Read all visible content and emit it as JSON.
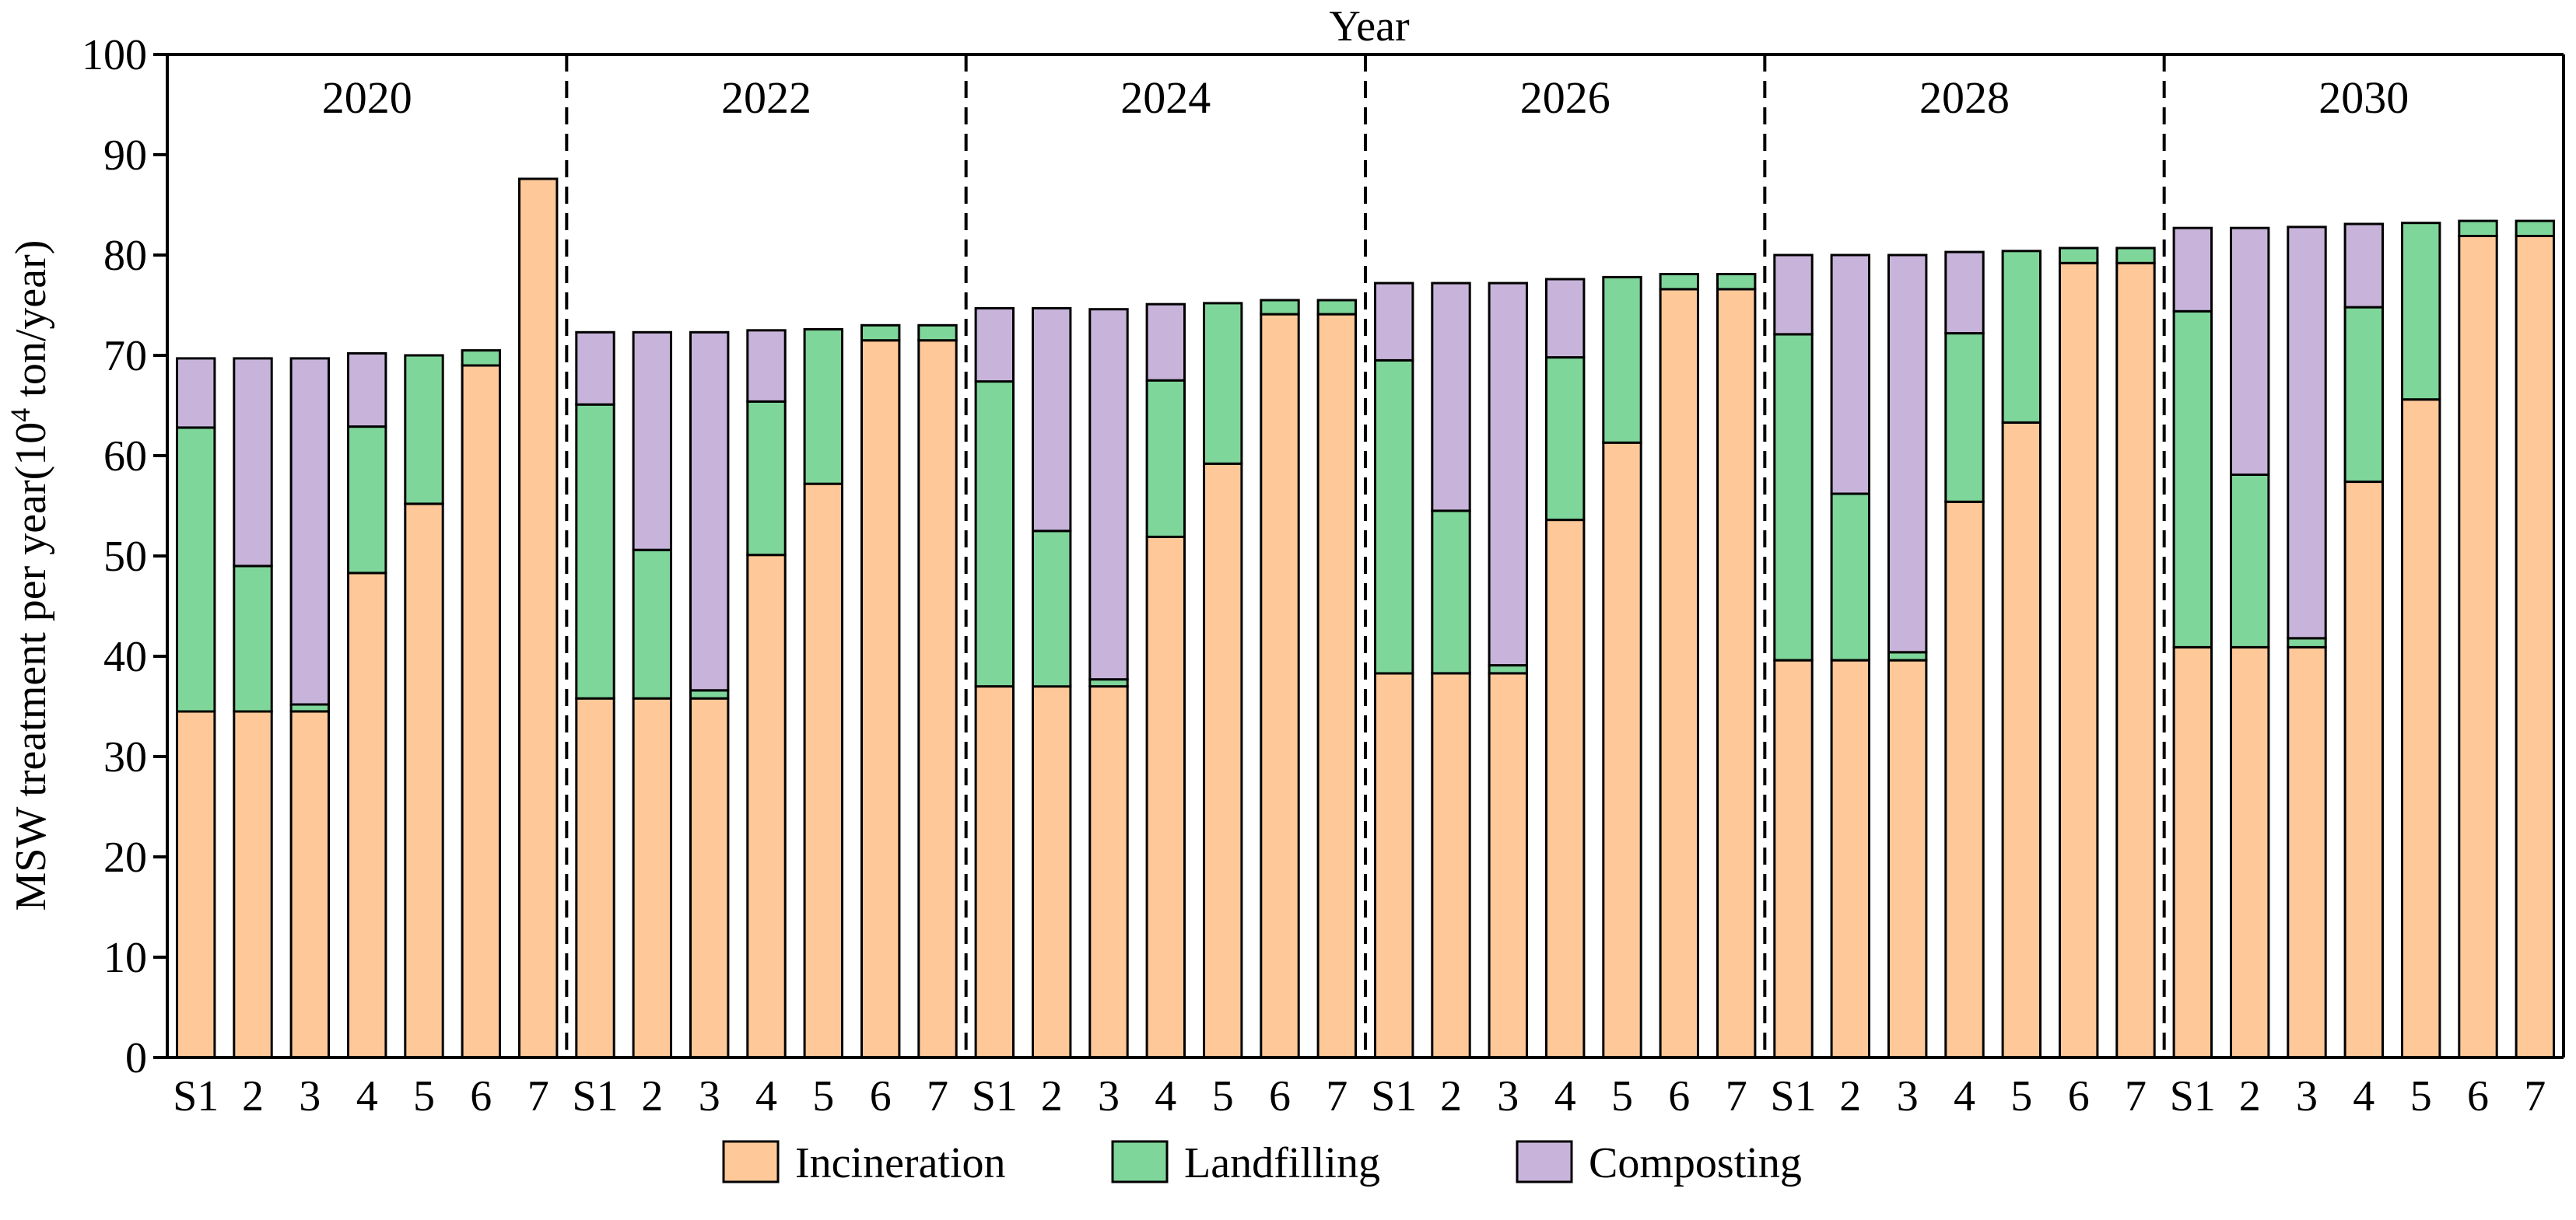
{
  "chart_data": {
    "type": "bar",
    "stacked": true,
    "title": "Year",
    "ylabel_main": "MSW treatment per year(10",
    "ylabel_sup": "4",
    "ylabel_tail": " ton/year)",
    "ylim": [
      0,
      100
    ],
    "yticks": [
      0,
      10,
      20,
      30,
      40,
      50,
      60,
      70,
      80,
      90,
      100
    ],
    "scenario_labels": [
      "S1",
      "2",
      "3",
      "4",
      "5",
      "6",
      "7"
    ],
    "groups": [
      {
        "year": "2020",
        "incineration": [
          34.5,
          34.5,
          34.5,
          48.3,
          55.2,
          69.0,
          87.6
        ],
        "landfilling": [
          28.3,
          14.5,
          0.7,
          14.6,
          14.8,
          1.5,
          0.0
        ],
        "composting": [
          6.9,
          20.7,
          34.5,
          7.3,
          0.0,
          0.0,
          0.0
        ]
      },
      {
        "year": "2022",
        "incineration": [
          35.8,
          35.8,
          35.8,
          50.1,
          57.2,
          71.5,
          71.5
        ],
        "landfilling": [
          29.3,
          14.8,
          0.8,
          15.3,
          15.4,
          1.5,
          1.5
        ],
        "composting": [
          7.2,
          21.7,
          35.7,
          7.1,
          0.0,
          0.0,
          0.0
        ]
      },
      {
        "year": "2024",
        "incineration": [
          37.0,
          37.0,
          37.0,
          51.9,
          59.2,
          74.1,
          74.1
        ],
        "landfilling": [
          30.4,
          15.5,
          0.7,
          15.6,
          16.0,
          1.4,
          1.4
        ],
        "composting": [
          7.3,
          22.2,
          36.9,
          7.6,
          0.0,
          0.0,
          0.0
        ]
      },
      {
        "year": "2026",
        "incineration": [
          38.3,
          38.3,
          38.3,
          53.6,
          61.3,
          76.6,
          76.6
        ],
        "landfilling": [
          31.2,
          16.2,
          0.8,
          16.2,
          16.5,
          1.5,
          1.5
        ],
        "composting": [
          7.7,
          22.7,
          38.1,
          7.8,
          0.0,
          0.0,
          0.0
        ]
      },
      {
        "year": "2028",
        "incineration": [
          39.6,
          39.6,
          39.6,
          55.4,
          63.3,
          79.2,
          79.2
        ],
        "landfilling": [
          32.5,
          16.6,
          0.8,
          16.8,
          17.1,
          1.5,
          1.5
        ],
        "composting": [
          7.9,
          23.8,
          39.6,
          8.1,
          0.0,
          0.0,
          0.0
        ]
      },
      {
        "year": "2030",
        "incineration": [
          40.9,
          40.9,
          40.9,
          57.4,
          65.6,
          81.9,
          81.9
        ],
        "landfilling": [
          33.5,
          17.2,
          0.9,
          17.4,
          17.6,
          1.5,
          1.5
        ],
        "composting": [
          8.3,
          24.6,
          41.0,
          8.3,
          0.0,
          0.0,
          0.0
        ]
      }
    ],
    "series": [
      {
        "name": "Incineration",
        "key": "incineration",
        "color": "#FFC898"
      },
      {
        "name": "Landfilling",
        "key": "landfilling",
        "color": "#7FD69A"
      },
      {
        "name": "Composting",
        "key": "composting",
        "color": "#C8B4DA"
      }
    ],
    "legend_position": "bottom-center"
  }
}
